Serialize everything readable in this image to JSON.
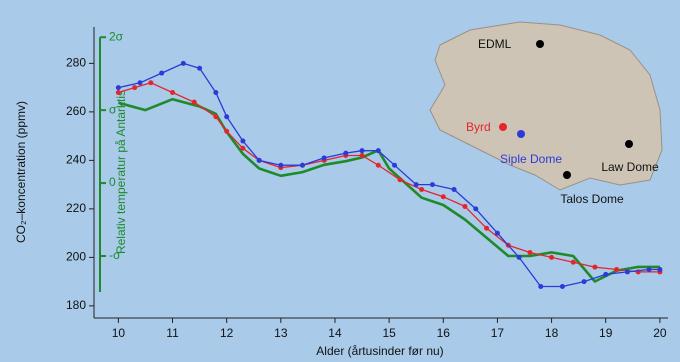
{
  "chart_data": {
    "type": "line",
    "xlabel": "Alder (årtusinder før nu)",
    "ylabel": "CO₂–koncentration (ppmv)",
    "y2label": "Relativ temperatur på Antarktis",
    "xlim": [
      9.55,
      20.15
    ],
    "xticks": [
      10,
      11,
      12,
      13,
      14,
      15,
      16,
      17,
      18,
      19,
      20
    ],
    "ylim": [
      175,
      295
    ],
    "yticks": [
      180,
      200,
      220,
      240,
      260,
      280
    ],
    "y2lim": [
      -1.85,
      2.14
    ],
    "y2ticks": [
      {
        "value": -1,
        "label": "-σ"
      },
      0,
      {
        "value": 1,
        "label": "σ"
      },
      {
        "value": 2,
        "label": "2σ"
      }
    ],
    "annotations": [
      "EDML",
      "Byrd",
      "Siple Dome",
      "Law Dome",
      "Talos Dome"
    ],
    "series": [
      {
        "color": "#e4262b",
        "markers": true,
        "x": [
          10.0,
          10.3,
          10.6,
          11.0,
          11.4,
          11.8,
          12.0,
          12.3,
          12.6,
          13.0,
          13.4,
          13.8,
          14.2,
          14.5,
          14.8,
          15.2,
          15.6,
          16.0,
          16.4,
          16.8,
          17.2,
          17.6,
          18.0,
          18.4,
          18.8,
          19.2,
          19.6,
          20.0
        ],
        "values": [
          268,
          270,
          272,
          268,
          264,
          258,
          252,
          245,
          240,
          237,
          238,
          240,
          242,
          242,
          238,
          232,
          228,
          225,
          221,
          212,
          205,
          202,
          200,
          198,
          196,
          195,
          194,
          194
        ]
      },
      {
        "color": "#2a3bd9",
        "markers": true,
        "x": [
          10.0,
          10.4,
          10.8,
          11.2,
          11.5,
          11.8,
          12.0,
          12.3,
          12.6,
          13.0,
          13.4,
          13.8,
          14.2,
          14.5,
          14.8,
          15.1,
          15.5,
          15.8,
          16.2,
          16.6,
          17.0,
          17.4,
          17.8,
          18.2,
          18.6,
          19.0,
          19.4,
          19.8,
          20.0
        ],
        "values": [
          270,
          272,
          276,
          280,
          278,
          268,
          258,
          248,
          240,
          238,
          238,
          241,
          243,
          244,
          244,
          238,
          230,
          230,
          228,
          220,
          210,
          200,
          188,
          188,
          190,
          193,
          194,
          195,
          195
        ]
      },
      {
        "color": "#1e8a2a",
        "markers": false,
        "axis": "y2",
        "x": [
          10.0,
          10.5,
          11.0,
          11.5,
          11.8,
          12.0,
          12.3,
          12.6,
          13.0,
          13.4,
          13.8,
          14.2,
          14.5,
          14.8,
          15.0,
          15.3,
          15.6,
          16.0,
          16.4,
          16.8,
          17.2,
          17.6,
          18.0,
          18.4,
          18.8,
          19.2,
          19.6,
          20.0
        ],
        "values": [
          1.1,
          1.0,
          1.15,
          1.05,
          0.95,
          0.7,
          0.4,
          0.2,
          0.1,
          0.15,
          0.25,
          0.3,
          0.35,
          0.45,
          0.2,
          0.0,
          -0.2,
          -0.3,
          -0.5,
          -0.75,
          -1.0,
          -1.0,
          -0.95,
          -1.0,
          -1.35,
          -1.2,
          -1.15,
          -1.15
        ]
      }
    ]
  }
}
